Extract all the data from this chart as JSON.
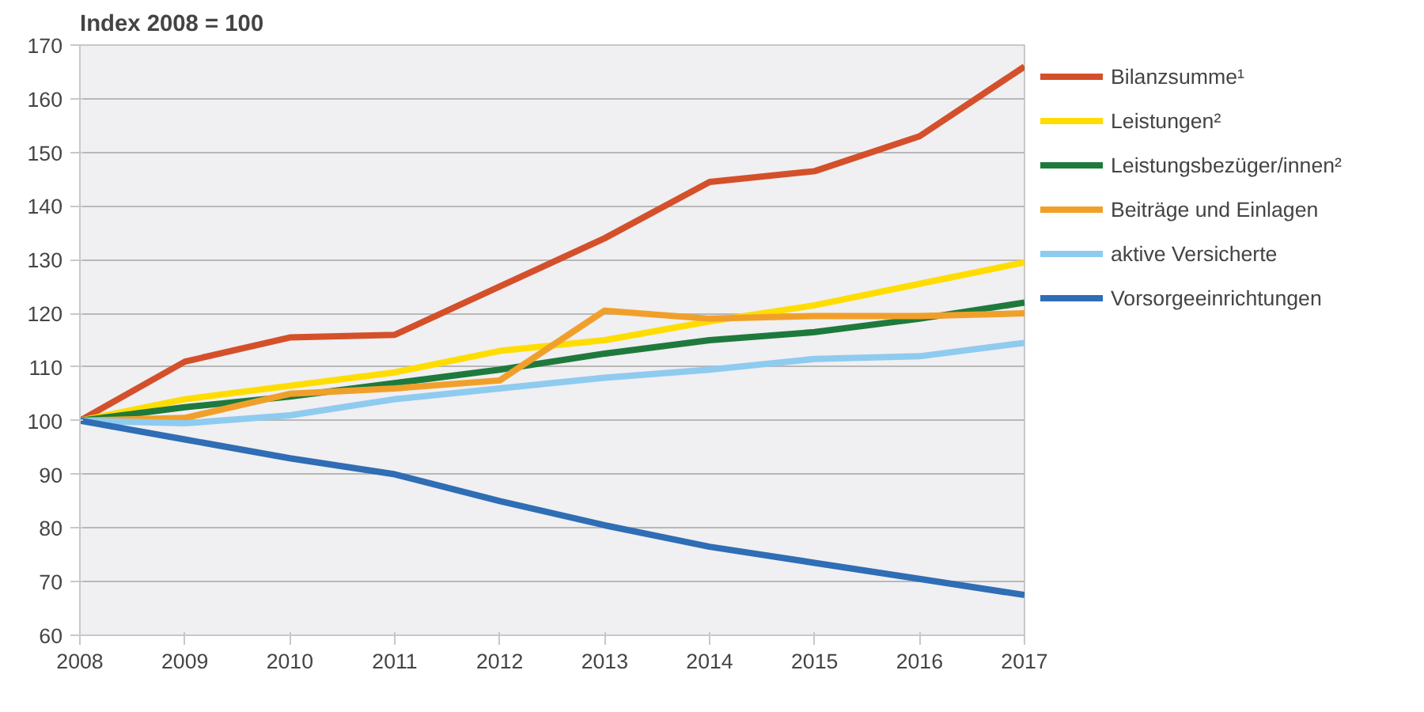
{
  "chart_data": {
    "type": "line",
    "title": "Index 2008 = 100",
    "x": [
      2008,
      2009,
      2010,
      2011,
      2012,
      2013,
      2014,
      2015,
      2016,
      2017
    ],
    "xlim": [
      2008,
      2017
    ],
    "xticks": [
      2008,
      2009,
      2010,
      2011,
      2012,
      2013,
      2014,
      2015,
      2016,
      2017
    ],
    "ylim": [
      60,
      170
    ],
    "yticks": [
      60,
      70,
      80,
      90,
      100,
      110,
      120,
      130,
      140,
      150,
      160,
      170
    ],
    "grid": "y",
    "legend": "right",
    "marker": "none",
    "line_style": "solid",
    "series": [
      {
        "name": "Bilanzsumme¹",
        "color": "#d4502a",
        "values": [
          100,
          111,
          115.5,
          116,
          125,
          134,
          144.5,
          146.5,
          153,
          166
        ]
      },
      {
        "name": "Leistungen²",
        "color": "#ffdd00",
        "values": [
          100,
          104,
          106.5,
          109,
          113,
          115,
          118.5,
          121.5,
          125.5,
          129.5
        ]
      },
      {
        "name": "Leistungsbezüger/innen²",
        "color": "#1e7a3c",
        "values": [
          100,
          102.5,
          104.5,
          107,
          109.5,
          112.5,
          115,
          116.5,
          119,
          122
        ]
      },
      {
        "name": "Beiträge und Einlagen",
        "color": "#f0a02a",
        "values": [
          100,
          100.5,
          105,
          106,
          107.5,
          120.5,
          119,
          119.5,
          119.5,
          120
        ]
      },
      {
        "name": "aktive Versicherte",
        "color": "#8ecbef",
        "values": [
          100,
          99.5,
          101,
          104,
          106,
          108,
          109.5,
          111.5,
          112,
          114.5
        ]
      },
      {
        "name": "Vorsorgeeinrichtungen",
        "color": "#2f6db5",
        "values": [
          100,
          96.5,
          93,
          90,
          85,
          80.5,
          76.5,
          73.5,
          70.5,
          67.5
        ]
      }
    ]
  }
}
